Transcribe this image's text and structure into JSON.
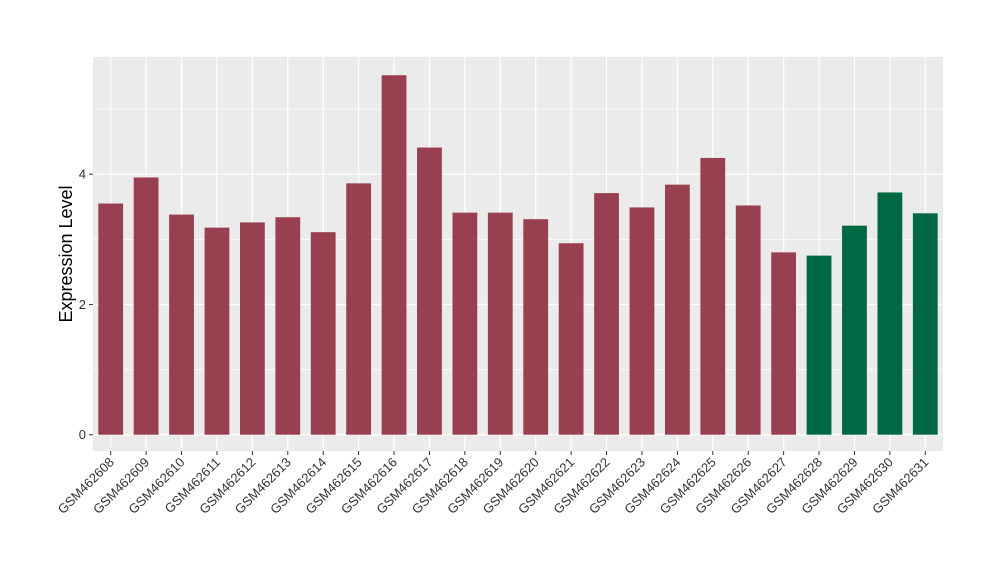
{
  "chart_data": {
    "type": "bar",
    "title": "",
    "xlabel": "",
    "ylabel": "Expression Level",
    "ylim": [
      -0.25,
      5.8
    ],
    "yticks": [
      0,
      2,
      4
    ],
    "ytick_labels": [
      "0",
      "2",
      "4"
    ],
    "grid": true,
    "categories": [
      "GSM462608",
      "GSM462609",
      "GSM462610",
      "GSM462611",
      "GSM462612",
      "GSM462613",
      "GSM462614",
      "GSM462615",
      "GSM462616",
      "GSM462617",
      "GSM462618",
      "GSM462619",
      "GSM462620",
      "GSM462621",
      "GSM462622",
      "GSM462623",
      "GSM462624",
      "GSM462625",
      "GSM462626",
      "GSM462627",
      "GSM462628",
      "GSM462629",
      "GSM462630",
      "GSM462631"
    ],
    "values": [
      3.55,
      3.95,
      3.38,
      3.18,
      3.26,
      3.34,
      3.11,
      3.86,
      5.52,
      4.41,
      3.41,
      3.41,
      3.31,
      2.94,
      3.71,
      3.49,
      3.84,
      4.25,
      3.52,
      2.8,
      2.75,
      3.21,
      3.72,
      3.4
    ],
    "groups": [
      "a",
      "a",
      "a",
      "a",
      "a",
      "a",
      "a",
      "a",
      "a",
      "a",
      "a",
      "a",
      "a",
      "a",
      "a",
      "a",
      "a",
      "a",
      "a",
      "a",
      "b",
      "b",
      "b",
      "b"
    ],
    "colors": {
      "a": "#98404f",
      "b": "#006843"
    },
    "panel_background": "#ebebeb",
    "grid_color": "#ffffff"
  }
}
